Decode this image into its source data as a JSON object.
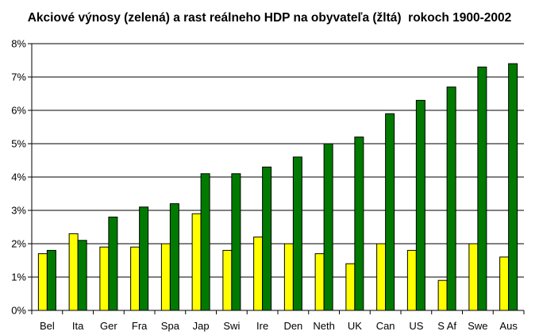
{
  "chart_data": {
    "type": "bar",
    "title": "Akciové výnosy (zelená) a rast reálneho HDP na obyvateľa (žltá)  rokoch 1900-2002",
    "categories": [
      "Bel",
      "Ita",
      "Ger",
      "Fra",
      "Spa",
      "Jap",
      "Swi",
      "Ire",
      "Den",
      "Neth",
      "UK",
      "Can",
      "US",
      "S Af",
      "Swe",
      "Aus"
    ],
    "series": [
      {
        "color": "#ffff00",
        "values": [
          1.7,
          2.3,
          1.9,
          1.9,
          2.0,
          2.9,
          1.8,
          2.2,
          2.0,
          1.7,
          1.4,
          2.0,
          1.8,
          0.9,
          2.0,
          1.6
        ]
      },
      {
        "color": "#007a00",
        "values": [
          1.8,
          2.1,
          2.8,
          3.1,
          3.2,
          4.1,
          4.1,
          4.3,
          4.6,
          5.0,
          5.2,
          5.9,
          6.3,
          6.7,
          7.3,
          7.4
        ]
      }
    ],
    "ylim": [
      0,
      8
    ],
    "yticks": [
      0,
      1,
      2,
      3,
      4,
      5,
      6,
      7,
      8
    ],
    "ytick_labels": [
      "0%",
      "1%",
      "2%",
      "3%",
      "4%",
      "5%",
      "6%",
      "7%",
      "8%"
    ],
    "grid": true,
    "legend": "none"
  }
}
